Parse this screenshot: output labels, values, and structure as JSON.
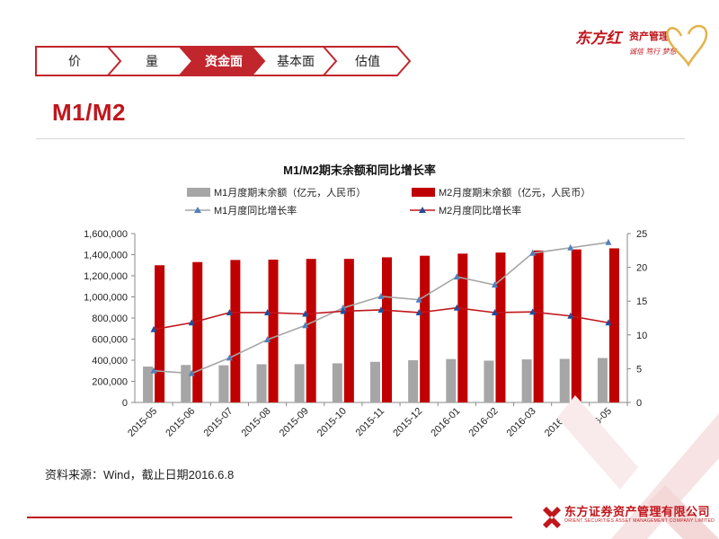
{
  "nav": {
    "tabs": [
      {
        "label": "价",
        "active": false
      },
      {
        "label": "量",
        "active": false
      },
      {
        "label": "资金面",
        "active": true
      },
      {
        "label": "基本面",
        "active": false
      },
      {
        "label": "估值",
        "active": false
      }
    ]
  },
  "brand": {
    "name": "东方红",
    "sub": "资产管理",
    "slogan": "诚信 笃行 梦想"
  },
  "page_title": "M1/M2",
  "source_note": "资料来源：Wind，截止日期2016.6.8",
  "footer": {
    "company": "东方证券资产管理有限公司",
    "company_en": "ORIENT SECURITIES ASSET MANAGEMENT COMPANY LIMITED"
  },
  "colors": {
    "accent": "#c0161c",
    "m1_bar": "#a6a6a6",
    "m2_bar": "#c00000",
    "m1_line": "#a6a6a6",
    "m1_marker": "#4f81bd",
    "m2_line": "#c0161c",
    "m2_marker": "#1f4e9c"
  },
  "chart_data": {
    "type": "bar",
    "title": "M1/M2期末余额和同比增长率",
    "categories": [
      "2015-05",
      "2015-06",
      "2015-07",
      "2015-08",
      "2015-09",
      "2015-10",
      "2015-11",
      "2015-12",
      "2016-01",
      "2016-02",
      "2016-03",
      "2016-04",
      "2016-05"
    ],
    "series": [
      {
        "name": "M1月度期末余额（亿元，人民币）",
        "kind": "bar",
        "axis": "left",
        "values": [
          340000,
          355000,
          352000,
          362000,
          363000,
          371000,
          385000,
          400000,
          411000,
          396000,
          408000,
          413000,
          421000
        ]
      },
      {
        "name": "M2月度期末余额（亿元，人民币）",
        "kind": "bar",
        "axis": "left",
        "values": [
          1300000,
          1330000,
          1350000,
          1353000,
          1360000,
          1360000,
          1375000,
          1390000,
          1410000,
          1420000,
          1440000,
          1450000,
          1460000
        ]
      },
      {
        "name": "M1月度同比增长率",
        "kind": "line",
        "axis": "right",
        "values": [
          4.7,
          4.3,
          6.6,
          9.3,
          11.4,
          14.0,
          15.7,
          15.2,
          18.6,
          17.4,
          22.1,
          22.9,
          23.7
        ]
      },
      {
        "name": "M2月度同比增长率",
        "kind": "line",
        "axis": "right",
        "values": [
          10.8,
          11.8,
          13.3,
          13.3,
          13.1,
          13.5,
          13.7,
          13.3,
          14.0,
          13.3,
          13.4,
          12.8,
          11.8
        ]
      }
    ],
    "y_left": {
      "min": 0,
      "max": 1600000,
      "ticks": [
        "0",
        "200,000",
        "400,000",
        "600,000",
        "800,000",
        "1,000,000",
        "1,200,000",
        "1,400,000",
        "1,600,000"
      ]
    },
    "y_right": {
      "min": 0,
      "max": 25,
      "ticks": [
        "0",
        "5",
        "10",
        "15",
        "20",
        "25"
      ]
    },
    "legend_position": "top",
    "grid": false
  }
}
